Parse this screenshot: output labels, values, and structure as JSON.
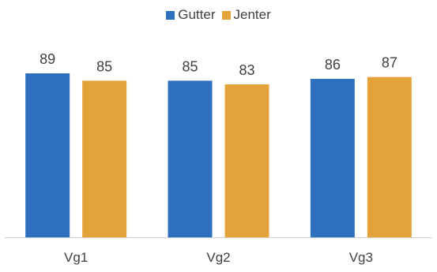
{
  "chart_data": {
    "type": "bar",
    "categories": [
      "Vg1",
      "Vg2",
      "Vg3"
    ],
    "series": [
      {
        "name": "Gutter",
        "values": [
          89,
          85,
          86
        ],
        "color": "#2e6fc0"
      },
      {
        "name": "Jenter",
        "values": [
          85,
          83,
          87
        ],
        "color": "#e3a33a"
      }
    ],
    "ylim": [
      0,
      100
    ],
    "grid": false,
    "legend_position": "top",
    "data_labels": true
  }
}
